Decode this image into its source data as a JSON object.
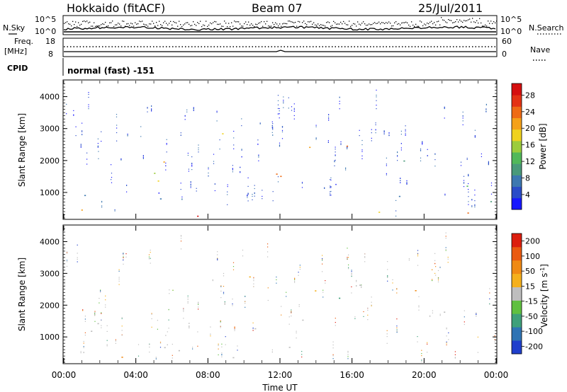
{
  "header": {
    "station": "Hokkaido (fitACF)",
    "beam": "Beam 07",
    "date": "25/Jul/2011"
  },
  "top_panels": {
    "nsky_label": "N.Sky",
    "nsky_ticks": [
      "10^5",
      "10^0"
    ],
    "nsearch_label": "N.Search",
    "nsearch_ticks": [
      "10^5",
      "10^0"
    ],
    "freq_label_1": "Freq.",
    "freq_label_2": "[MHz]",
    "freq_ticks": [
      "18",
      "8"
    ],
    "nave_label": "Nave",
    "nave_ticks": [
      "60",
      "0"
    ],
    "cpid_label": "CPID",
    "cpid_value": "normal (fast) -151"
  },
  "chart_data": [
    {
      "type": "heatmap",
      "panel": "power",
      "xlabel": "",
      "ylabel": "Slant Range [km]",
      "xlim": [
        0,
        24
      ],
      "ylim": [
        180,
        4500
      ],
      "y_ticks": [
        1000,
        2000,
        3000,
        4000
      ],
      "colorbar": {
        "label": "Power [dB]",
        "ticks": [
          "4",
          "8",
          "12",
          "16",
          "20",
          "24",
          "28"
        ],
        "colors": [
          "#1818ff",
          "#2a4cc8",
          "#3d78b0",
          "#4a9a7a",
          "#52b85a",
          "#9ccc3c",
          "#f0d21e",
          "#f5a11a",
          "#ef6b15",
          "#e43214",
          "#d50f0f"
        ]
      },
      "regions": [
        {
          "x": [
            0,
            24
          ],
          "y": [
            300,
            420
          ],
          "level": 0.55,
          "density": 0.35
        },
        {
          "x": [
            0.2,
            2.2
          ],
          "y": [
            200,
            500
          ],
          "level": 0.85,
          "density": 0.75
        },
        {
          "x": [
            0.5,
            3.5
          ],
          "y": [
            850,
            1250
          ],
          "level": 0.3,
          "density": 0.5
        },
        {
          "x": [
            1.5,
            5.5
          ],
          "y": [
            1200,
            1650
          ],
          "level": 0.5,
          "density": 0.45
        },
        {
          "x": [
            2.5,
            6.5
          ],
          "y": [
            500,
            900
          ],
          "level": 0.4,
          "density": 0.45
        },
        {
          "x": [
            4.5,
            9.5
          ],
          "y": [
            1600,
            2100
          ],
          "level": 0.65,
          "density": 0.6
        },
        {
          "x": [
            6.5,
            9.5
          ],
          "y": [
            200,
            480
          ],
          "level": 0.92,
          "density": 0.8
        },
        {
          "x": [
            8.5,
            11.5
          ],
          "y": [
            2200,
            3100
          ],
          "level": 0.4,
          "density": 0.4
        },
        {
          "x": [
            9.5,
            12.5
          ],
          "y": [
            1000,
            1700
          ],
          "level": 0.6,
          "density": 0.55
        },
        {
          "x": [
            11,
            14.5
          ],
          "y": [
            1400,
            1900
          ],
          "level": 0.8,
          "density": 0.65
        },
        {
          "x": [
            12,
            15
          ],
          "y": [
            1800,
            2500
          ],
          "level": 0.55,
          "density": 0.55
        },
        {
          "x": [
            14,
            16.5
          ],
          "y": [
            1550,
            2250
          ],
          "level": 0.6,
          "density": 0.55
        },
        {
          "x": [
            15.5,
            18
          ],
          "y": [
            2150,
            2700
          ],
          "level": 0.8,
          "density": 0.6
        },
        {
          "x": [
            17,
            20
          ],
          "y": [
            2300,
            2700
          ],
          "level": 0.5,
          "density": 0.5
        },
        {
          "x": [
            18,
            21.5
          ],
          "y": [
            1600,
            2200
          ],
          "level": 0.35,
          "density": 0.45
        },
        {
          "x": [
            20,
            24
          ],
          "y": [
            1100,
            1900
          ],
          "level": 0.25,
          "density": 0.4
        },
        {
          "x": [
            21,
            24
          ],
          "y": [
            200,
            450
          ],
          "level": 0.7,
          "density": 0.6
        },
        {
          "x": [
            5,
            7.5
          ],
          "y": [
            3000,
            3300
          ],
          "level": 0.3,
          "density": 0.2
        },
        {
          "x": [
            11,
            13.5
          ],
          "y": [
            2900,
            3300
          ],
          "level": 0.3,
          "density": 0.25
        },
        {
          "x": [
            0,
            24
          ],
          "y": [
            450,
            1000
          ],
          "level": 0.2,
          "density": 0.15
        }
      ]
    },
    {
      "type": "heatmap",
      "panel": "velocity",
      "xlabel": "Time UT",
      "ylabel": "Slant Range [km]",
      "xlim": [
        0,
        24
      ],
      "ylim": [
        180,
        4500
      ],
      "x_ticks": [
        "00:00",
        "04:00",
        "08:00",
        "12:00",
        "16:00",
        "20:00",
        "00:00"
      ],
      "y_ticks": [
        1000,
        2000,
        3000,
        4000
      ],
      "colorbar": {
        "label": "Velocity [m s",
        "label_sup": "-1",
        "label_end": "]",
        "ticks": [
          "200",
          "100",
          "50",
          "15",
          "-15",
          "-50",
          "-100",
          "-200"
        ],
        "colors": [
          "#1f3fcc",
          "#2f74b4",
          "#3fa07a",
          "#60c040",
          "#bebebe",
          "#f5b01c",
          "#f08a14",
          "#ea5a10",
          "#dc1e0e"
        ]
      },
      "regions": [
        {
          "x": [
            0,
            24
          ],
          "y": [
            300,
            420
          ],
          "level": 0.45,
          "density": 0.3
        },
        {
          "x": [
            0.2,
            2.2
          ],
          "y": [
            200,
            500
          ],
          "level": 0.5,
          "density": 0.6
        },
        {
          "x": [
            0.5,
            3.5
          ],
          "y": [
            850,
            1250
          ],
          "level": 0.5,
          "density": 0.45
        },
        {
          "x": [
            1.5,
            5.5
          ],
          "y": [
            1200,
            1650
          ],
          "level": 0.5,
          "density": 0.45
        },
        {
          "x": [
            2.5,
            6.5
          ],
          "y": [
            500,
            900
          ],
          "level": 0.5,
          "density": 0.4
        },
        {
          "x": [
            4.5,
            9.5
          ],
          "y": [
            1600,
            2100
          ],
          "level": 0.5,
          "density": 0.55
        },
        {
          "x": [
            6.5,
            9.5
          ],
          "y": [
            200,
            480
          ],
          "level": 0.5,
          "density": 0.7
        },
        {
          "x": [
            8.5,
            11.5
          ],
          "y": [
            2200,
            3100
          ],
          "level": 0.62,
          "density": 0.4
        },
        {
          "x": [
            9.5,
            12.5
          ],
          "y": [
            1000,
            1700
          ],
          "level": 0.5,
          "density": 0.5
        },
        {
          "x": [
            11,
            14.5
          ],
          "y": [
            1400,
            1900
          ],
          "level": 0.5,
          "density": 0.6
        },
        {
          "x": [
            12,
            15
          ],
          "y": [
            1800,
            2500
          ],
          "level": 0.58,
          "density": 0.5
        },
        {
          "x": [
            14,
            16.5
          ],
          "y": [
            1550,
            2250
          ],
          "level": 0.3,
          "density": 0.45
        },
        {
          "x": [
            15.5,
            18
          ],
          "y": [
            2150,
            2700
          ],
          "level": 0.48,
          "density": 0.55
        },
        {
          "x": [
            17,
            20
          ],
          "y": [
            2300,
            2700
          ],
          "level": 0.5,
          "density": 0.5
        },
        {
          "x": [
            18,
            21.5
          ],
          "y": [
            1600,
            2200
          ],
          "level": 0.5,
          "density": 0.45
        },
        {
          "x": [
            20,
            24
          ],
          "y": [
            1100,
            1900
          ],
          "level": 0.5,
          "density": 0.4
        },
        {
          "x": [
            21,
            24
          ],
          "y": [
            200,
            450
          ],
          "level": 0.5,
          "density": 0.5
        },
        {
          "x": [
            12,
            13.5
          ],
          "y": [
            2900,
            3300
          ],
          "level": 0.3,
          "density": 0.3
        },
        {
          "x": [
            0,
            24
          ],
          "y": [
            450,
            1000
          ],
          "level": 0.5,
          "density": 0.15
        }
      ]
    }
  ]
}
